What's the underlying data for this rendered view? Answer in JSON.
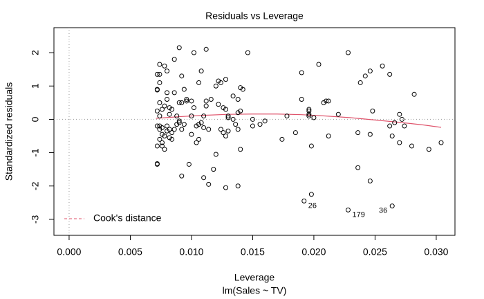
{
  "chart_data": {
    "type": "scatter",
    "title": "Residuals vs Leverage",
    "xlabel": "Leverage",
    "subtitle": "lm(Sales ~ TV)",
    "ylabel": "Standardized residuals",
    "xlim": [
      -0.00124,
      0.03153
    ],
    "ylim": [
      -3.48,
      2.75
    ],
    "xticks": [
      {
        "value": 0,
        "label": "0.000"
      },
      {
        "value": 0.005,
        "label": "0.005"
      },
      {
        "value": 0.01,
        "label": "0.010"
      },
      {
        "value": 0.015,
        "label": "0.015"
      },
      {
        "value": 0.02,
        "label": "0.020"
      },
      {
        "value": 0.025,
        "label": "0.025"
      },
      {
        "value": 0.03,
        "label": "0.030"
      }
    ],
    "yticks": [
      -3,
      -2,
      -1,
      0,
      1,
      2
    ],
    "hline": 0,
    "vline": 0,
    "color": "#000000",
    "x": [
      0.0072,
      0.0072,
      0.0072,
      0.0072,
      0.0072,
      0.0072,
      0.0072,
      0.0072,
      0.0074,
      0.0074,
      0.0074,
      0.0074,
      0.0074,
      0.0074,
      0.0074,
      0.0074,
      0.0076,
      0.0076,
      0.0076,
      0.0076,
      0.0076,
      0.0078,
      0.0078,
      0.0078,
      0.0078,
      0.008,
      0.008,
      0.008,
      0.008,
      0.008,
      0.0082,
      0.0082,
      0.0082,
      0.0082,
      0.0084,
      0.0084,
      0.0084,
      0.0086,
      0.0086,
      0.0086,
      0.0088,
      0.0088,
      0.009,
      0.009,
      0.009,
      0.009,
      0.0092,
      0.0092,
      0.0092,
      0.0092,
      0.0094,
      0.0094,
      0.0096,
      0.0096,
      0.0098,
      0.01,
      0.01,
      0.01,
      0.0102,
      0.0102,
      0.0104,
      0.0104,
      0.0106,
      0.0106,
      0.0106,
      0.0108,
      0.0108,
      0.011,
      0.011,
      0.011,
      0.0112,
      0.0112,
      0.0112,
      0.0114,
      0.0114,
      0.0116,
      0.0118,
      0.012,
      0.012,
      0.0122,
      0.0122,
      0.0124,
      0.0124,
      0.0126,
      0.0126,
      0.0128,
      0.0128,
      0.0128,
      0.0128,
      0.013,
      0.013,
      0.013,
      0.0134,
      0.0134,
      0.0136,
      0.0138,
      0.0138,
      0.0138,
      0.0138,
      0.014,
      0.014,
      0.014,
      0.0142,
      0.0146,
      0.015,
      0.015,
      0.0156,
      0.016,
      0.0174,
      0.0178,
      0.0185,
      0.019,
      0.019,
      0.0196,
      0.0196,
      0.0196,
      0.0196,
      0.0198,
      0.02,
      0.0204,
      0.0208,
      0.021,
      0.0212,
      0.0212,
      0.022,
      0.0228,
      0.0236,
      0.0236,
      0.0238,
      0.0242,
      0.0246,
      0.0246,
      0.0246,
      0.0248,
      0.0256,
      0.0262,
      0.0262,
      0.0264,
      0.0266,
      0.027,
      0.027,
      0.0272,
      0.0274,
      0.028,
      0.0282,
      0.0294,
      0.0304
    ],
    "values": [
      -1.35,
      -1.33,
      -0.8,
      -0.2,
      0.9,
      0.88,
      1.35,
      0.25,
      1.65,
      1.1,
      0.5,
      -0.3,
      -0.6,
      -0.2,
      1.35,
      0.1,
      -0.25,
      -0.45,
      -0.8,
      -0.7,
      0.3,
      -0.9,
      1.6,
      0.4,
      -0.5,
      1.45,
      0.8,
      0.6,
      -0.2,
      -0.35,
      0.35,
      0.15,
      -0.55,
      -0.3,
      0.3,
      -0.4,
      -0.6,
      1.8,
      0.8,
      -0.3,
      -0.15,
      0.1,
      2.15,
      -0.1,
      0.5,
      -0.05,
      1.3,
      -1.7,
      0.5,
      -0.3,
      -0.15,
      0.9,
      0.6,
      0.55,
      -1.35,
      0.1,
      0.55,
      -0.45,
      2.0,
      0.35,
      -0.2,
      -0.7,
      -0.6,
      -0.15,
      1.1,
      -0.1,
      1.45,
      -1.75,
      -0.25,
      0.1,
      2.1,
      0.55,
      0.4,
      -0.3,
      -1.95,
      0.6,
      -1.5,
      -1.05,
      1.0,
      1.15,
      0.45,
      1.1,
      -0.3,
      0.35,
      -0.4,
      0.3,
      -0.5,
      1.2,
      -2.05,
      0.1,
      -0.35,
      0.05,
      0.0,
      0.7,
      -0.15,
      0.6,
      -0.3,
      0.2,
      -2.0,
      -0.9,
      0.95,
      0.25,
      0.9,
      2.0,
      -0.2,
      0.0,
      -0.15,
      -0.05,
      -0.6,
      0.1,
      -0.4,
      1.4,
      0.6,
      0.1,
      0.25,
      0.3,
      0.15,
      -0.8,
      0.05,
      1.65,
      0.5,
      0.55,
      0.55,
      -0.5,
      0.15,
      2.0,
      -0.4,
      -1.45,
      1.1,
      1.3,
      1.45,
      -0.45,
      -1.85,
      0.25,
      1.6,
      1.35,
      -0.2,
      -0.5,
      -0.1,
      -0.7,
      0.15,
      0.0,
      -0.2,
      -0.8,
      0.75,
      -0.9,
      -0.7
    ],
    "labeled_points": {
      "x": [
        0.0192,
        0.0198,
        0.0228,
        0.0264
      ],
      "values": [
        -2.45,
        -2.25,
        -2.72,
        -2.6
      ],
      "labels": [
        "26",
        null,
        "179",
        "36"
      ]
    },
    "smooth": {
      "color": "#DF536B",
      "x": [
        0.0071,
        0.009,
        0.011,
        0.013,
        0.015,
        0.017,
        0.019,
        0.021,
        0.023,
        0.025,
        0.027,
        0.029,
        0.0304
      ],
      "values": [
        0.03,
        0.08,
        0.12,
        0.15,
        0.16,
        0.16,
        0.14,
        0.1,
        0.05,
        -0.02,
        -0.09,
        -0.17,
        -0.24
      ]
    },
    "legend": {
      "label": "Cook's distance",
      "color": "#DF536B",
      "position": "bottom-left"
    }
  }
}
